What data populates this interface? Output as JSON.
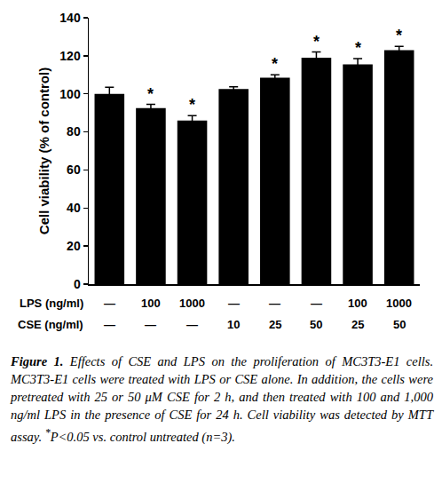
{
  "chart_data": {
    "type": "bar",
    "y_label": "Cell viability (% of control)",
    "categories": [
      null,
      null,
      null,
      null,
      null,
      null,
      null,
      null
    ],
    "category_rows": [
      {
        "label": "LPS (ng/ml)",
        "labels": [
          "—",
          "100",
          "1000",
          "—",
          "—",
          "—",
          "100",
          "1000"
        ]
      },
      {
        "label": "CSE (ng/ml)",
        "labels": [
          "—",
          "—",
          "—",
          "10",
          "25",
          "50",
          "25",
          "50"
        ]
      }
    ],
    "values": [
      100,
      92.5,
      86,
      102.5,
      108.5,
      119,
      115.5,
      123
    ],
    "errors": [
      3.5,
      2,
      2.5,
      1.2,
      1.5,
      3,
      3,
      2
    ],
    "significance": [
      null,
      "*",
      "*",
      null,
      "*",
      "*",
      "*",
      "*"
    ],
    "color": "#000000",
    "ylim": [
      0,
      140
    ],
    "yticks": [
      0,
      20,
      40,
      60,
      80,
      100,
      120,
      140
    ],
    "grid": false,
    "tick_labels": "y"
  },
  "caption": {
    "label": "Figure 1.",
    "text": "Effects of CSE and LPS on the proliferation of MC3T3-E1 cells. MC3T3-E1 cells were treated with LPS or CSE alone. In addition, the cells were pretreated with 25 or 50 μM CSE for 2 h, and then treated with 100 and 1,000 ng/ml LPS in the presence of CSE for 24 h. Cell viability was detected by MTT assay.",
    "footnote_mark": "*",
    "footnote": "P<0.05 vs. control untreated (n=3)."
  }
}
